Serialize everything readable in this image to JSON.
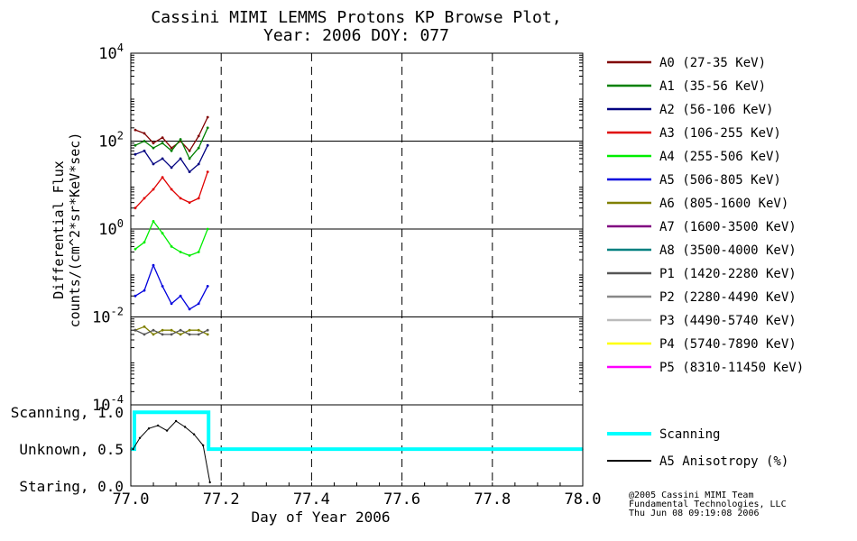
{
  "title_line1": "Cassini MIMI LEMMS Protons KP Browse Plot,",
  "title_line2": "Year: 2006 DOY: 077",
  "footer": {
    "line1": "@2005 Cassini MIMI Team",
    "line2": "Fundamental Technologies, LLC",
    "line3": "Thu Jun 08 09:19:08 2006"
  },
  "chart_data": [
    {
      "type": "line",
      "panel": "flux",
      "ylabel_line1": "Differential Flux",
      "ylabel_line2": "counts/(cm^2*sr*KeV*sec)",
      "yscale": "log",
      "ylim": [
        0.0001,
        10000
      ],
      "yticks": [
        {
          "value": 10000,
          "base": "10",
          "exp": "4"
        },
        {
          "value": 100,
          "base": "10",
          "exp": "2"
        },
        {
          "value": 1,
          "base": "10",
          "exp": "0"
        },
        {
          "value": 0.01,
          "base": "10",
          "exp": "-2"
        },
        {
          "value": 0.0001,
          "base": "10",
          "exp": "-4"
        }
      ],
      "xlim": [
        77.0,
        78.0
      ],
      "grid": true,
      "legend_position": "right",
      "series": [
        {
          "name": "A0 (27-35 KeV)",
          "color": "#800000",
          "x": [
            77.01,
            77.03,
            77.05,
            77.07,
            77.09,
            77.11,
            77.13,
            77.15,
            77.17
          ],
          "y": [
            180,
            150,
            90,
            120,
            70,
            100,
            60,
            130,
            350
          ]
        },
        {
          "name": "A1 (35-56 KeV)",
          "color": "#008000",
          "x": [
            77.01,
            77.03,
            77.05,
            77.07,
            77.09,
            77.11,
            77.13,
            77.15,
            77.17
          ],
          "y": [
            80,
            100,
            70,
            90,
            60,
            110,
            40,
            70,
            200
          ]
        },
        {
          "name": "A2 (56-106 KeV)",
          "color": "#000080",
          "x": [
            77.01,
            77.03,
            77.05,
            77.07,
            77.09,
            77.11,
            77.13,
            77.15,
            77.17
          ],
          "y": [
            50,
            60,
            30,
            40,
            25,
            40,
            20,
            30,
            80
          ]
        },
        {
          "name": "A3 (106-255 KeV)",
          "color": "#e00000",
          "x": [
            77.01,
            77.03,
            77.05,
            77.07,
            77.09,
            77.11,
            77.13,
            77.15,
            77.17
          ],
          "y": [
            3,
            5,
            8,
            15,
            8,
            5,
            4,
            5,
            20
          ]
        },
        {
          "name": "A4 (255-506 KeV)",
          "color": "#00ee00",
          "x": [
            77.01,
            77.03,
            77.05,
            77.07,
            77.09,
            77.11,
            77.13,
            77.15,
            77.17
          ],
          "y": [
            0.35,
            0.5,
            1.5,
            0.8,
            0.4,
            0.3,
            0.25,
            0.3,
            1.0
          ]
        },
        {
          "name": "A5 (506-805 KeV)",
          "color": "#0000dd",
          "x": [
            77.01,
            77.03,
            77.05,
            77.07,
            77.09,
            77.11,
            77.13,
            77.15,
            77.17
          ],
          "y": [
            0.03,
            0.04,
            0.15,
            0.05,
            0.02,
            0.03,
            0.015,
            0.02,
            0.05
          ]
        },
        {
          "name": "A6 (805-1600 KeV)",
          "color": "#808000",
          "x": [
            77.01,
            77.03,
            77.05,
            77.07,
            77.09,
            77.11,
            77.13,
            77.15,
            77.17
          ],
          "y": [
            0.005,
            0.006,
            0.004,
            0.005,
            0.005,
            0.004,
            0.005,
            0.005,
            0.004
          ]
        },
        {
          "name": "A7 (1600-3500 KeV)",
          "color": "#800080",
          "x": [],
          "y": []
        },
        {
          "name": "A8 (3500-4000 KeV)",
          "color": "#008080",
          "x": [],
          "y": []
        },
        {
          "name": "P1 (1420-2280 KeV)",
          "color": "#555555",
          "x": [
            77.01,
            77.03,
            77.05,
            77.07,
            77.09,
            77.11,
            77.13,
            77.15,
            77.17
          ],
          "y": [
            0.005,
            0.004,
            0.005,
            0.004,
            0.004,
            0.005,
            0.004,
            0.004,
            0.005
          ]
        },
        {
          "name": "P2 (2280-4490 KeV)",
          "color": "#888888",
          "x": [],
          "y": []
        },
        {
          "name": "P3 (4490-5740 KeV)",
          "color": "#bbbbbb",
          "x": [],
          "y": []
        },
        {
          "name": "P4 (5740-7890 KeV)",
          "color": "#ffff00",
          "x": [],
          "y": []
        },
        {
          "name": "P5 (8310-11450 KeV)",
          "color": "#ff00ff",
          "x": [],
          "y": []
        }
      ]
    },
    {
      "type": "line",
      "panel": "scan",
      "ylim": [
        0,
        1.1
      ],
      "yticks": [
        {
          "value": 1.0,
          "label": "Scanning, 1.0"
        },
        {
          "value": 0.5,
          "label": "Unknown, 0.5"
        },
        {
          "value": 0.0,
          "label": "Staring, 0.0"
        }
      ],
      "xlim": [
        77.0,
        78.0
      ],
      "xticks": [
        "77.0",
        "77.2",
        "77.4",
        "77.6",
        "77.8",
        "78.0"
      ],
      "xlabel": "Day of Year 2006",
      "series": [
        {
          "name": "Scanning",
          "color": "#00ffff",
          "x": [
            77.0,
            77.008,
            77.008,
            77.172,
            77.172,
            78.0
          ],
          "y": [
            0.5,
            0.5,
            1.0,
            1.0,
            0.5,
            0.5
          ]
        },
        {
          "name": "A5 Anisotropy (%)",
          "color": "#000000",
          "x": [
            77.005,
            77.02,
            77.04,
            77.06,
            77.08,
            77.1,
            77.12,
            77.14,
            77.16,
            77.175
          ],
          "y": [
            0.5,
            0.65,
            0.78,
            0.82,
            0.75,
            0.88,
            0.8,
            0.7,
            0.55,
            0.05
          ]
        }
      ]
    }
  ]
}
